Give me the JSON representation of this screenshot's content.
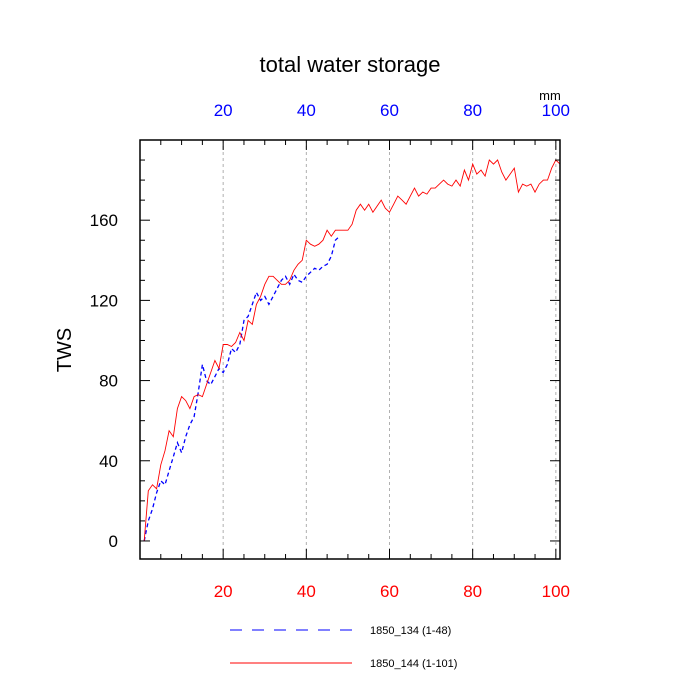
{
  "chart_data": {
    "type": "line",
    "title": "total water storage",
    "units_label": "mm",
    "ylabel": "TWS",
    "xlim": [
      0,
      101
    ],
    "ylim": [
      -9,
      200
    ],
    "x_ticks_bottom": [
      "20",
      "40",
      "60",
      "80",
      "100"
    ],
    "x_ticks_top": [
      "20",
      "40",
      "60",
      "80",
      "100"
    ],
    "y_ticks": [
      "0",
      "40",
      "80",
      "120",
      "160"
    ],
    "grid": "vertical dashed at bottom x ticks",
    "legend_position": "bottom-center",
    "colors": {
      "series_1": "#0000ff",
      "series_2": "#ff0000",
      "bottom_ticks": "#ff0000",
      "top_ticks": "#0000ff"
    },
    "series": [
      {
        "name": "1850_134 (1-48)",
        "style": "dashed",
        "x": [
          1,
          2,
          3,
          4,
          5,
          6,
          7,
          8,
          9,
          10,
          11,
          12,
          13,
          14,
          15,
          16,
          17,
          18,
          19,
          20,
          21,
          22,
          23,
          24,
          25,
          26,
          27,
          28,
          29,
          30,
          31,
          32,
          33,
          34,
          35,
          36,
          37,
          38,
          39,
          40,
          41,
          42,
          43,
          44,
          45,
          46,
          47,
          48
        ],
        "values": [
          0,
          10,
          16,
          24,
          30,
          28,
          35,
          42,
          49,
          44,
          52,
          58,
          62,
          74,
          88,
          80,
          78,
          82,
          86,
          84,
          88,
          96,
          94,
          98,
          110,
          112,
          118,
          124,
          120,
          122,
          118,
          122,
          126,
          130,
          132,
          128,
          133,
          130,
          129,
          132,
          134,
          136,
          135,
          137,
          138,
          142,
          150,
          152
        ]
      },
      {
        "name": "1850_144 (1-101)",
        "style": "solid",
        "x": [
          1,
          2,
          3,
          4,
          5,
          6,
          7,
          8,
          9,
          10,
          11,
          12,
          13,
          14,
          15,
          16,
          17,
          18,
          19,
          20,
          21,
          22,
          23,
          24,
          25,
          26,
          27,
          28,
          29,
          30,
          31,
          32,
          33,
          34,
          35,
          36,
          37,
          38,
          39,
          40,
          41,
          42,
          43,
          44,
          45,
          46,
          47,
          48,
          49,
          50,
          51,
          52,
          53,
          54,
          55,
          56,
          57,
          58,
          59,
          60,
          61,
          62,
          63,
          64,
          65,
          66,
          67,
          68,
          69,
          70,
          71,
          72,
          73,
          74,
          75,
          76,
          77,
          78,
          79,
          80,
          81,
          82,
          83,
          84,
          85,
          86,
          87,
          88,
          89,
          90,
          91,
          92,
          93,
          94,
          95,
          96,
          97,
          98,
          99,
          100,
          101
        ],
        "values": [
          0,
          25,
          28,
          26,
          38,
          45,
          55,
          52,
          66,
          72,
          70,
          66,
          72,
          73,
          72,
          78,
          84,
          90,
          86,
          98,
          98,
          97,
          99,
          104,
          100,
          110,
          108,
          118,
          122,
          128,
          132,
          132,
          130,
          128,
          128,
          130,
          135,
          138,
          140,
          150,
          148,
          147,
          148,
          150,
          155,
          152,
          155,
          155,
          155,
          155,
          158,
          165,
          168,
          165,
          168,
          164,
          167,
          170,
          166,
          164,
          168,
          172,
          170,
          168,
          172,
          176,
          172,
          174,
          173,
          176,
          176,
          178,
          180,
          178,
          177,
          180,
          177,
          185,
          180,
          188,
          183,
          185,
          182,
          190,
          188,
          190,
          184,
          180,
          183,
          186,
          174,
          178,
          177,
          178,
          174,
          178,
          180,
          180,
          186,
          190,
          188
        ]
      }
    ]
  }
}
